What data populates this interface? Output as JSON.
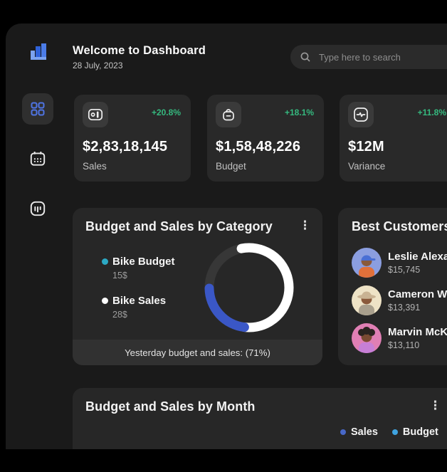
{
  "app": {
    "logo_icon": "bar-chart-logo",
    "title": "Welcome to Dashboard",
    "date": "28 July, 2023"
  },
  "search": {
    "icon": "search-icon",
    "placeholder": "Type here to search"
  },
  "sidebar": {
    "items": [
      {
        "id": "dashboard",
        "icon": "grid-icon",
        "active": true
      },
      {
        "id": "calendar",
        "icon": "calendar-icon",
        "active": false
      },
      {
        "id": "stats",
        "icon": "bar-gauge-icon",
        "active": false
      }
    ]
  },
  "stats": [
    {
      "icon": "poll-icon",
      "change": "+20.8%",
      "value": "$2,83,18,145",
      "label": "Sales"
    },
    {
      "icon": "bag-icon",
      "change": "+18.1%",
      "value": "$1,58,48,226",
      "label": "Budget"
    },
    {
      "icon": "activity-icon",
      "change": "+11.8%",
      "value": "$12M",
      "label": "Variance"
    }
  ],
  "category_card": {
    "title": "Budget and Sales by Category",
    "menu_icon": "kebab-menu-icon",
    "legend": [
      {
        "label": "Bike Budget",
        "value": "15$",
        "color": "#2ca9c4"
      },
      {
        "label": "Bike Sales",
        "value": "28$",
        "color": "#ffffff"
      }
    ],
    "footer": "Yesterday budget and sales: (71%)"
  },
  "customers_card": {
    "title": "Best Customers",
    "rows": [
      {
        "name": "Leslie Alexander",
        "amount": "$15,745",
        "avatar": {
          "bg": "#8b9ee0",
          "skin": "#8a5a3b",
          "shirt": "#e0703a",
          "hat": "#4a6fd4"
        }
      },
      {
        "name": "Cameron Williamson",
        "amount": "$13,391",
        "avatar": {
          "bg": "#eee3c6",
          "skin": "#8a5a3b",
          "shirt": "#a9a08d",
          "hat": "#c9b393"
        }
      },
      {
        "name": "Marvin McKinney",
        "amount": "$13,110",
        "avatar": {
          "bg": "#e07fb4",
          "skin": "#7a4a32",
          "shirt": "#c77fd6",
          "hat": "#2b2320"
        }
      }
    ]
  },
  "month_card": {
    "title": "Budget and Sales by Month",
    "menu_icon": "kebab-menu-icon",
    "legend": [
      {
        "label": "Sales",
        "color": "#4868c8"
      },
      {
        "label": "Budget",
        "color": "#3fa3e0"
      }
    ]
  },
  "colors": {
    "page_bg": "#000000",
    "panel_bg": "#1a1a1a",
    "card_bg": "#272727",
    "accent_blue": "#3e63dd",
    "positive_green": "#35b97f",
    "donut_blue": "#3a57c6",
    "teal": "#2ca9c4"
  },
  "chart_data": [
    {
      "type": "pie",
      "variant": "donut",
      "title": "Budget and Sales by Category",
      "series": [
        {
          "name": "Bike Budget",
          "value": 15,
          "unit": "$"
        },
        {
          "name": "Bike Sales",
          "value": 28,
          "unit": "$"
        }
      ],
      "caption": "Yesterday budget and sales: (71%)",
      "shown_percent": 71,
      "legend_position": "left",
      "donut": {
        "track_color": "#373737",
        "arcs": [
          {
            "name": "Bike Sales",
            "color": "#ffffff",
            "start_deg": -101,
            "sweep_deg": 198
          },
          {
            "name": "Bike Budget",
            "color": "#3a57c6",
            "start_deg": 97,
            "sweep_deg": 82
          }
        ]
      }
    },
    {
      "type": "bar",
      "title": "Budget and Sales by Month",
      "legend": [
        "Sales",
        "Budget"
      ],
      "series": []
    }
  ]
}
